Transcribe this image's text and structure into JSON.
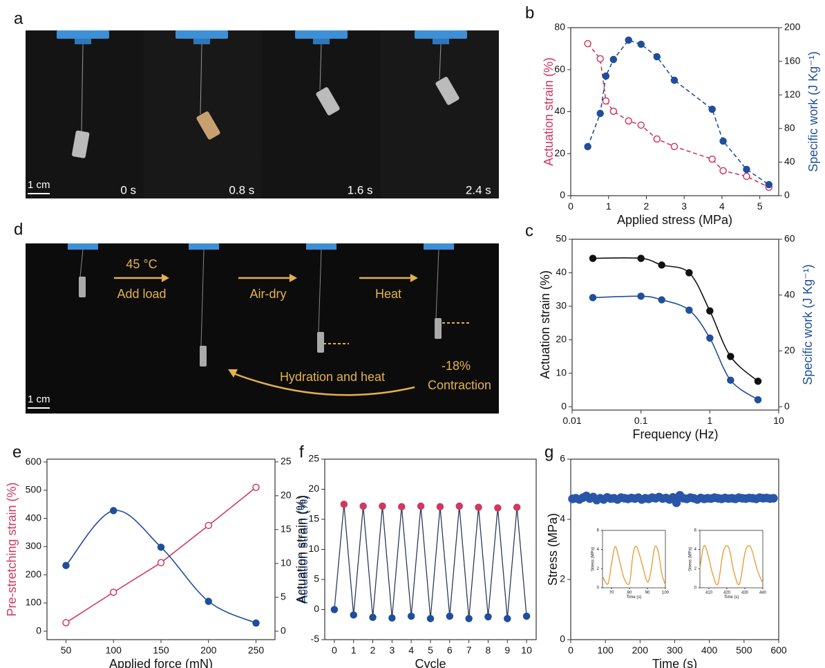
{
  "photo_panels": [
    {
      "label": "a",
      "scale_bar": "1 cm",
      "times": [
        "0 s",
        "0.8 s",
        "1.6 s",
        "2.4 s"
      ]
    },
    {
      "label": "d",
      "scale_bar": "1 cm",
      "condition": "45 °C",
      "steps": [
        "Add load",
        "Air-dry",
        "Heat"
      ],
      "return_step": "Hydration and heat",
      "contraction_value": "-18%",
      "contraction_label": "Contraction"
    }
  ],
  "chart_data": [
    {
      "type": "line",
      "label": "b",
      "xlabel": "Applied stress (MPa)",
      "ylabel": "Actuation strain (%)",
      "ylabel_color": "#d0395e",
      "y2label": "Specific work (J Kg⁻¹)",
      "y2label_color": "#1f4e9c",
      "x": [
        0.45,
        0.78,
        0.93,
        1.13,
        1.53,
        1.86,
        2.28,
        2.74,
        3.74,
        4.03,
        4.65,
        5.24
      ],
      "xlim": [
        0,
        5.5
      ],
      "xticks": [
        0,
        1,
        2,
        3,
        4,
        5
      ],
      "ylim": [
        0,
        80
      ],
      "yticks": [
        0,
        20,
        40,
        60,
        80
      ],
      "y2lim": [
        0,
        200
      ],
      "y2ticks": [
        0,
        40,
        80,
        120,
        160,
        200
      ],
      "series": [
        {
          "color": "#d0395e",
          "marker": "open",
          "line_style": "dashed",
          "values": [
            72.4,
            65.2,
            45.1,
            40.2,
            35.6,
            33.6,
            27.0,
            23.4,
            17.4,
            11.9,
            9.2,
            4.0
          ]
        },
        {
          "color": "#1f4e9c",
          "marker": "filled",
          "line_style": "dashed",
          "axis": "y2",
          "values": [
            58.4,
            97.9,
            142.4,
            162.1,
            185.2,
            180.2,
            165.4,
            137.4,
            102.9,
            65.0,
            31.3,
            13.2
          ]
        }
      ]
    },
    {
      "type": "line",
      "label": "c",
      "xlabel": "Frequency (Hz)",
      "ylabel": "Actuation strain (%)",
      "ylabel_color": "#111111",
      "y2label": "Specific work  (J Kg⁻¹)",
      "y2label_color": "#1f4e9c",
      "x": [
        0.02,
        0.1,
        0.2,
        0.5,
        1,
        2,
        5
      ],
      "xlog": true,
      "xlim": [
        0.01,
        10
      ],
      "xticks": [
        0.01,
        0.1,
        1,
        10
      ],
      "ylim": [
        -1,
        50
      ],
      "yticks": [
        0,
        10,
        20,
        30,
        40,
        50
      ],
      "y2lim": [
        -1.2,
        60
      ],
      "y2ticks": [
        0,
        20,
        40,
        60
      ],
      "series": [
        {
          "color": "#111111",
          "marker": "filled",
          "line_style": "smooth",
          "values": [
            44.3,
            44.3,
            42.3,
            40.0,
            28.6,
            15.0,
            7.6
          ]
        },
        {
          "color": "#1f4e9c",
          "marker": "filled",
          "line_style": "smooth",
          "axis": "y2",
          "values": [
            39.1,
            39.6,
            38.3,
            34.6,
            24.6,
            9.5,
            2.5
          ]
        }
      ]
    },
    {
      "type": "line",
      "label": "e",
      "xlabel": "Applied force (mN)",
      "ylabel": "Pre-stretching strain (%)",
      "ylabel_color": "#d0395e",
      "y2label": "Actuation strain (%)",
      "y2label_color": "#1f4e9c",
      "x": [
        50,
        100,
        150,
        200,
        250
      ],
      "xlim": [
        30,
        270
      ],
      "xticks": [
        50,
        100,
        150,
        200,
        250
      ],
      "ylim": [
        -30,
        610
      ],
      "yticks": [
        0,
        100,
        200,
        300,
        400,
        500,
        600
      ],
      "y2lim": [
        -1.25,
        25.4
      ],
      "y2ticks": [
        0,
        5,
        10,
        15,
        20,
        25
      ],
      "series": [
        {
          "color": "#d0395e",
          "marker": "open",
          "line_style": "solid",
          "values": [
            30,
            138,
            243,
            375,
            510
          ]
        },
        {
          "color": "#1f4e9c",
          "marker": "filled",
          "line_style": "smooth",
          "axis": "y2",
          "values": [
            9.7,
            17.8,
            12.4,
            4.4,
            1.2
          ]
        }
      ]
    },
    {
      "type": "line",
      "label": "f",
      "xlabel": "Cycle",
      "ylabel": "Actuation strain (%)",
      "ylabel_color": "#111111",
      "connect": "interleave",
      "line_color": "#2b3a5a",
      "xlim": [
        -0.5,
        10.5
      ],
      "xticks": [
        0,
        1,
        2,
        3,
        4,
        5,
        6,
        7,
        8,
        9,
        10
      ],
      "ylim": [
        -5,
        25
      ],
      "yticks": [
        -5,
        0,
        5,
        10,
        15,
        20,
        25
      ],
      "series": [
        {
          "color": "#1f4e9c",
          "marker": "filled",
          "line_style": "none",
          "x": [
            0,
            1,
            2,
            3,
            4,
            5,
            6,
            7,
            8,
            9,
            10
          ],
          "values": [
            0,
            -0.9,
            -1.3,
            -1.4,
            -1.1,
            -1.5,
            -1.1,
            -1.5,
            -1.2,
            -1.5,
            -1.1
          ]
        },
        {
          "color": "#d0395e",
          "marker": "filled",
          "line_style": "none",
          "x": [
            0.5,
            1.5,
            2.5,
            3.5,
            4.5,
            5.5,
            6.5,
            7.5,
            8.5,
            9.5
          ],
          "values": [
            17.5,
            17.2,
            17.2,
            17.1,
            17.2,
            17.1,
            17.2,
            17.0,
            16.9,
            17.0
          ]
        }
      ]
    },
    {
      "type": "scatter",
      "label": "g",
      "xlabel": "Time (s)",
      "ylabel": "Stress (MPa)",
      "ylabel_color": "#111111",
      "x": [
        5,
        15,
        25,
        35,
        45,
        55,
        65,
        75,
        85,
        95,
        105,
        115,
        125,
        135,
        145,
        155,
        165,
        175,
        185,
        195,
        205,
        215,
        225,
        235,
        245,
        255,
        265,
        275,
        285,
        295,
        305,
        315,
        325,
        335,
        345,
        355,
        365,
        375,
        385,
        395,
        405,
        415,
        425,
        435,
        445,
        455,
        465,
        475,
        485,
        495,
        505,
        515,
        525,
        535,
        545,
        555,
        565,
        575,
        585
      ],
      "xlim": [
        0,
        600
      ],
      "xticks": [
        0,
        100,
        200,
        300,
        400,
        500,
        600
      ],
      "ylim": [
        0,
        6
      ],
      "yticks": [
        0,
        2,
        4,
        6
      ],
      "series": [
        {
          "color": "#2a56a8",
          "marker": "filled",
          "line_style": "none",
          "values": [
            4.68,
            4.7,
            4.66,
            4.72,
            4.78,
            4.69,
            4.74,
            4.64,
            4.7,
            4.66,
            4.73,
            4.69,
            4.7,
            4.66,
            4.72,
            4.7,
            4.68,
            4.71,
            4.69,
            4.72,
            4.66,
            4.7,
            4.68,
            4.72,
            4.7,
            4.74,
            4.69,
            4.71,
            4.66,
            4.73,
            4.55,
            4.8,
            4.7,
            4.68,
            4.72,
            4.7,
            4.66,
            4.71,
            4.68,
            4.7,
            4.69,
            4.72,
            4.7,
            4.68,
            4.71,
            4.69,
            4.7,
            4.68,
            4.72,
            4.7,
            4.69,
            4.71,
            4.7,
            4.68,
            4.72,
            4.7,
            4.71,
            4.69,
            4.7
          ]
        }
      ],
      "insets": [
        {
          "type": "line",
          "xlabel": "Time (s)",
          "ylabel": "Stress (MPa)",
          "ylabel_color": "#111111",
          "x": [
            65,
            68,
            70,
            72,
            74,
            77,
            80,
            82,
            84,
            87,
            90,
            92,
            94,
            96,
            98,
            100
          ],
          "xlim": [
            65,
            100
          ],
          "xticks": [
            70,
            80,
            90,
            100
          ],
          "ylim": [
            0,
            6
          ],
          "yticks": [
            0,
            2,
            4,
            6
          ],
          "series": [
            {
              "color": "#e8962e",
              "marker": "none",
              "line_style": "smooth",
              "values": [
                1.2,
                0.4,
                2.5,
                4.3,
                3.2,
                1.0,
                0.5,
                3.5,
                4.3,
                2.5,
                0.6,
                1.8,
                4.2,
                3.8,
                1.5,
                0.3
              ]
            }
          ]
        },
        {
          "type": "line",
          "xlabel": "Time (s)",
          "ylabel": "Stress (MPa)",
          "ylabel_color": "#111111",
          "x": [
            405,
            407,
            409,
            412,
            415,
            418,
            421,
            424,
            427,
            430,
            432,
            434,
            437,
            440
          ],
          "xlim": [
            405,
            440
          ],
          "xticks": [
            410,
            420,
            430,
            440
          ],
          "ylim": [
            0,
            6
          ],
          "yticks": [
            0,
            2,
            4,
            6
          ],
          "series": [
            {
              "color": "#e8962e",
              "marker": "none",
              "line_style": "smooth",
              "values": [
                2.0,
                4.3,
                3.8,
                1.5,
                0.4,
                3.8,
                4.2,
                1.6,
                0.4,
                3.6,
                4.4,
                3.9,
                1.8,
                0.5
              ]
            }
          ]
        }
      ]
    }
  ]
}
